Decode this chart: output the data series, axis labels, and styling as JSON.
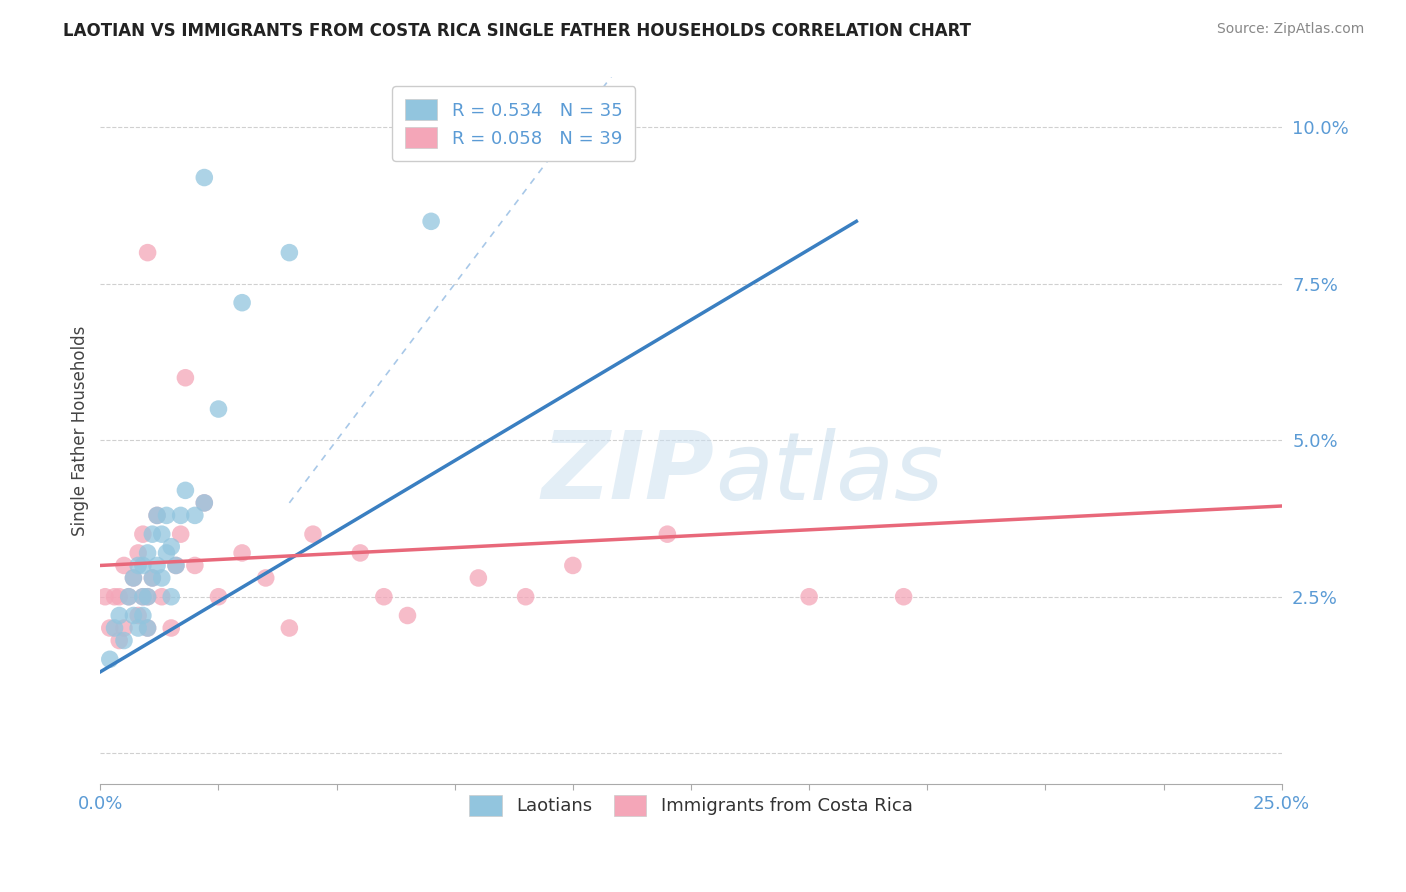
{
  "title": "LAOTIAN VS IMMIGRANTS FROM COSTA RICA SINGLE FATHER HOUSEHOLDS CORRELATION CHART",
  "source": "Source: ZipAtlas.com",
  "ylabel": "Single Father Households",
  "xlim": [
    0.0,
    0.25
  ],
  "ylim": [
    -0.005,
    0.108
  ],
  "y_ticks": [
    0.0,
    0.025,
    0.05,
    0.075,
    0.1
  ],
  "y_tick_labels": [
    "",
    "2.5%",
    "5.0%",
    "7.5%",
    "10.0%"
  ],
  "legend_r1": "R = 0.534",
  "legend_n1": "N = 35",
  "legend_r2": "R = 0.058",
  "legend_n2": "N = 39",
  "color_blue": "#92c5de",
  "color_pink": "#f4a6b8",
  "color_blue_line": "#3a7fc1",
  "color_pink_line": "#e8687a",
  "color_ref_line": "#a8c8e8",
  "watermark_zip": "ZIP",
  "watermark_atlas": "atlas",
  "blue_x": [
    0.002,
    0.003,
    0.004,
    0.005,
    0.006,
    0.007,
    0.007,
    0.008,
    0.008,
    0.009,
    0.009,
    0.009,
    0.01,
    0.01,
    0.01,
    0.011,
    0.011,
    0.012,
    0.012,
    0.013,
    0.013,
    0.014,
    0.014,
    0.015,
    0.015,
    0.016,
    0.017,
    0.018,
    0.02,
    0.022,
    0.025,
    0.03,
    0.04,
    0.07,
    0.022
  ],
  "blue_y": [
    0.015,
    0.02,
    0.022,
    0.018,
    0.025,
    0.022,
    0.028,
    0.02,
    0.03,
    0.022,
    0.025,
    0.03,
    0.02,
    0.025,
    0.032,
    0.028,
    0.035,
    0.03,
    0.038,
    0.028,
    0.035,
    0.032,
    0.038,
    0.025,
    0.033,
    0.03,
    0.038,
    0.042,
    0.038,
    0.04,
    0.055,
    0.072,
    0.08,
    0.085,
    0.092
  ],
  "pink_x": [
    0.001,
    0.002,
    0.003,
    0.004,
    0.004,
    0.005,
    0.005,
    0.006,
    0.007,
    0.008,
    0.008,
    0.009,
    0.009,
    0.01,
    0.01,
    0.01,
    0.011,
    0.012,
    0.013,
    0.015,
    0.016,
    0.017,
    0.018,
    0.02,
    0.022,
    0.025,
    0.03,
    0.035,
    0.04,
    0.045,
    0.055,
    0.06,
    0.065,
    0.08,
    0.09,
    0.1,
    0.12,
    0.15,
    0.17
  ],
  "pink_y": [
    0.025,
    0.02,
    0.025,
    0.018,
    0.025,
    0.02,
    0.03,
    0.025,
    0.028,
    0.022,
    0.032,
    0.025,
    0.035,
    0.02,
    0.025,
    0.08,
    0.028,
    0.038,
    0.025,
    0.02,
    0.03,
    0.035,
    0.06,
    0.03,
    0.04,
    0.025,
    0.032,
    0.028,
    0.02,
    0.035,
    0.032,
    0.025,
    0.022,
    0.028,
    0.025,
    0.03,
    0.035,
    0.025,
    0.025
  ],
  "blue_line_x": [
    0.0,
    0.16
  ],
  "blue_line_y_intercept": 0.013,
  "blue_line_slope": 0.45,
  "pink_line_x": [
    0.0,
    0.25
  ],
  "pink_line_y_intercept": 0.03,
  "pink_line_slope": 0.038,
  "ref_line_x": [
    0.04,
    0.25
  ],
  "ref_line_y": [
    0.04,
    0.25
  ]
}
